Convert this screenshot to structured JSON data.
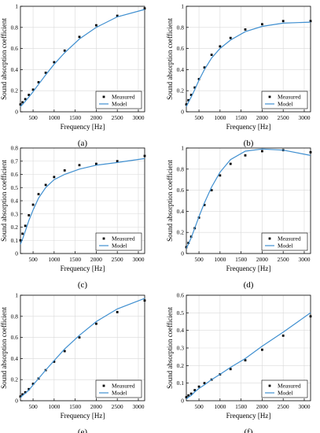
{
  "colors": {
    "model": "#3f8fd0",
    "measured": "#000000",
    "axis": "#000000",
    "grid": "#d9d9d9"
  },
  "chart_data": [
    {
      "type": "line",
      "panel_label": "(a)",
      "xlabel": "Frequency [Hz]",
      "ylabel": "Sound absorption coefficient",
      "xlim": [
        200,
        3150
      ],
      "ylim": [
        0,
        1
      ],
      "xticks": [
        500,
        1000,
        1500,
        2000,
        2500,
        3000
      ],
      "yticks": [
        0,
        0.2,
        0.4,
        0.6,
        0.8,
        1
      ],
      "ytick_labels": [
        "0",
        "0.2",
        "0.4",
        "0.6",
        "0.8",
        "1"
      ],
      "grid": true,
      "legend_position": "bottom-right",
      "series": [
        {
          "name": "Measured",
          "style": "markers",
          "x": [
            200,
            250,
            315,
            400,
            500,
            630,
            800,
            1000,
            1250,
            1600,
            2000,
            2500,
            3150
          ],
          "y": [
            0.07,
            0.09,
            0.12,
            0.16,
            0.21,
            0.28,
            0.37,
            0.47,
            0.58,
            0.71,
            0.82,
            0.91,
            0.98
          ]
        },
        {
          "name": "Model",
          "style": "line",
          "x": [
            200,
            250,
            315,
            400,
            500,
            630,
            800,
            1000,
            1250,
            1600,
            2000,
            2500,
            3150
          ],
          "y": [
            0.05,
            0.07,
            0.1,
            0.14,
            0.19,
            0.26,
            0.35,
            0.45,
            0.56,
            0.69,
            0.8,
            0.9,
            0.97
          ]
        }
      ]
    },
    {
      "type": "line",
      "panel_label": "(b)",
      "xlabel": "Frequency [Hz]",
      "ylabel": "Sound absorption coefficient",
      "xlim": [
        200,
        3150
      ],
      "ylim": [
        0,
        1
      ],
      "xticks": [
        500,
        1000,
        1500,
        2000,
        2500,
        3000
      ],
      "yticks": [
        0,
        0.2,
        0.4,
        0.6,
        0.8,
        1
      ],
      "ytick_labels": [
        "0",
        "0.2",
        "0.4",
        "0.6",
        "0.8",
        "1"
      ],
      "grid": true,
      "legend_position": "bottom-right",
      "series": [
        {
          "name": "Measured",
          "style": "markers",
          "x": [
            200,
            250,
            315,
            400,
            500,
            630,
            800,
            1000,
            1250,
            1600,
            2000,
            2500,
            3150
          ],
          "y": [
            0.07,
            0.11,
            0.16,
            0.23,
            0.31,
            0.42,
            0.54,
            0.62,
            0.7,
            0.78,
            0.83,
            0.86,
            0.86
          ]
        },
        {
          "name": "Model",
          "style": "line",
          "x": [
            200,
            250,
            315,
            400,
            500,
            630,
            800,
            1000,
            1250,
            1600,
            2000,
            2500,
            3150
          ],
          "y": [
            0.05,
            0.09,
            0.14,
            0.21,
            0.3,
            0.4,
            0.51,
            0.6,
            0.68,
            0.76,
            0.81,
            0.84,
            0.85
          ]
        }
      ]
    },
    {
      "type": "line",
      "panel_label": "(c)",
      "xlabel": "Frequency [Hz]",
      "ylabel": "Sound absorption coefficient",
      "xlim": [
        200,
        3150
      ],
      "ylim": [
        0,
        0.8
      ],
      "xticks": [
        500,
        1000,
        1500,
        2000,
        2500,
        3000
      ],
      "yticks": [
        0,
        0.1,
        0.2,
        0.3,
        0.4,
        0.5,
        0.6,
        0.7,
        0.8
      ],
      "ytick_labels": [
        "0",
        "0.1",
        "0.2",
        "0.3",
        "0.4",
        "0.5",
        "0.6",
        "0.7",
        "0.8"
      ],
      "grid": true,
      "legend_position": "bottom-right",
      "series": [
        {
          "name": "Measured",
          "style": "markers",
          "x": [
            200,
            250,
            315,
            400,
            500,
            630,
            800,
            1000,
            1250,
            1600,
            2000,
            2500,
            3150
          ],
          "y": [
            0.1,
            0.15,
            0.21,
            0.29,
            0.37,
            0.45,
            0.52,
            0.58,
            0.63,
            0.67,
            0.68,
            0.7,
            0.74
          ]
        },
        {
          "name": "Model",
          "style": "line",
          "x": [
            200,
            250,
            315,
            400,
            500,
            630,
            800,
            1000,
            1250,
            1600,
            2000,
            2500,
            3150
          ],
          "y": [
            0.07,
            0.11,
            0.17,
            0.25,
            0.33,
            0.42,
            0.5,
            0.56,
            0.6,
            0.64,
            0.67,
            0.69,
            0.72
          ]
        }
      ]
    },
    {
      "type": "line",
      "panel_label": "(d)",
      "xlabel": "Frequency [Hz]",
      "ylabel": "Sound absorption coefficient",
      "xlim": [
        200,
        3150
      ],
      "ylim": [
        0,
        1
      ],
      "xticks": [
        500,
        1000,
        1500,
        2000,
        2500,
        3000
      ],
      "yticks": [
        0,
        0.2,
        0.4,
        0.6,
        0.8,
        1
      ],
      "ytick_labels": [
        "0",
        "0.2",
        "0.4",
        "0.6",
        "0.8",
        "1"
      ],
      "grid": true,
      "legend_position": "bottom-right",
      "series": [
        {
          "name": "Measured",
          "style": "markers",
          "x": [
            200,
            250,
            315,
            400,
            500,
            630,
            800,
            1000,
            1250,
            1600,
            2000,
            2500,
            3150
          ],
          "y": [
            0.06,
            0.1,
            0.16,
            0.24,
            0.34,
            0.46,
            0.6,
            0.74,
            0.85,
            0.93,
            0.97,
            0.98,
            0.96
          ]
        },
        {
          "name": "Model",
          "style": "line",
          "x": [
            200,
            250,
            315,
            400,
            500,
            630,
            800,
            1000,
            1250,
            1600,
            2000,
            2500,
            3150
          ],
          "y": [
            0.05,
            0.09,
            0.15,
            0.24,
            0.35,
            0.48,
            0.63,
            0.77,
            0.89,
            0.97,
            0.99,
            0.98,
            0.93
          ]
        }
      ]
    },
    {
      "type": "line",
      "panel_label": "(e)",
      "xlabel": "Frequency [Hz]",
      "ylabel": "Sound absorption coefficient",
      "xlim": [
        200,
        3150
      ],
      "ylim": [
        0,
        1
      ],
      "xticks": [
        500,
        1000,
        1500,
        2000,
        2500,
        3000
      ],
      "yticks": [
        0,
        0.2,
        0.4,
        0.6,
        0.8,
        1
      ],
      "ytick_labels": [
        "0",
        "0.2",
        "0.4",
        "0.6",
        "0.8",
        "1"
      ],
      "grid": true,
      "legend_position": "bottom-right",
      "series": [
        {
          "name": "Measured",
          "style": "markers",
          "x": [
            200,
            250,
            315,
            400,
            500,
            630,
            800,
            1000,
            1250,
            1600,
            2000,
            2500,
            3150
          ],
          "y": [
            0.04,
            0.06,
            0.08,
            0.11,
            0.16,
            0.21,
            0.29,
            0.37,
            0.47,
            0.6,
            0.73,
            0.84,
            0.95
          ]
        },
        {
          "name": "Model",
          "style": "line",
          "x": [
            200,
            250,
            315,
            400,
            500,
            630,
            800,
            1000,
            1250,
            1600,
            2000,
            2500,
            3150
          ],
          "y": [
            0.03,
            0.05,
            0.07,
            0.1,
            0.15,
            0.21,
            0.29,
            0.38,
            0.49,
            0.62,
            0.75,
            0.87,
            0.97
          ]
        }
      ]
    },
    {
      "type": "line",
      "panel_label": "(f)",
      "xlabel": "Frequency [Hz]",
      "ylabel": "Sound absorption coefficient",
      "xlim": [
        200,
        3150
      ],
      "ylim": [
        0,
        0.6
      ],
      "xticks": [
        500,
        1000,
        1500,
        2000,
        2500,
        3000
      ],
      "yticks": [
        0,
        0.1,
        0.2,
        0.3,
        0.4,
        0.5,
        0.6
      ],
      "ytick_labels": [
        "0",
        "0.1",
        "0.2",
        "0.3",
        "0.4",
        "0.5",
        "0.6"
      ],
      "grid": true,
      "legend_position": "bottom-right",
      "series": [
        {
          "name": "Measured",
          "style": "markers",
          "x": [
            200,
            250,
            315,
            400,
            500,
            630,
            800,
            1000,
            1250,
            1600,
            2000,
            2500,
            3150
          ],
          "y": [
            0.02,
            0.03,
            0.04,
            0.06,
            0.08,
            0.1,
            0.12,
            0.15,
            0.18,
            0.23,
            0.29,
            0.37,
            0.48
          ]
        },
        {
          "name": "Model",
          "style": "line",
          "x": [
            200,
            250,
            315,
            400,
            500,
            630,
            800,
            1000,
            1250,
            1600,
            2000,
            2500,
            3150
          ],
          "y": [
            0.01,
            0.02,
            0.03,
            0.05,
            0.07,
            0.09,
            0.12,
            0.15,
            0.19,
            0.24,
            0.31,
            0.39,
            0.5
          ]
        }
      ]
    }
  ]
}
